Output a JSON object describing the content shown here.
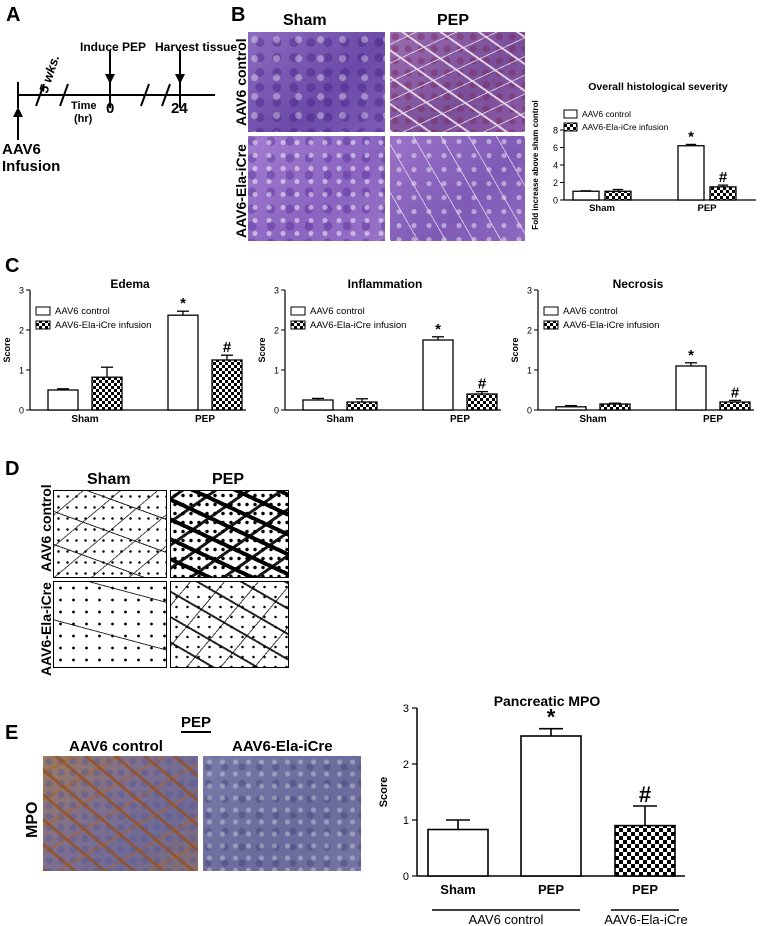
{
  "panels": {
    "A": "A",
    "B": "B",
    "C": "C",
    "D": "D",
    "E": "E"
  },
  "timeline": {
    "five_wks": "5 wks.",
    "induce_pep": "Induce PEP",
    "harvest": "Harvest tissue",
    "time_label_1": "Time",
    "time_label_2": "(hr)",
    "t0": "0",
    "t24": "24",
    "aav6_1": "AAV6",
    "aav6_2": "Infusion"
  },
  "panelB": {
    "col_sham": "Sham",
    "col_pep": "PEP",
    "row1": "AAV6 control",
    "row2": "AAV6-Ela-iCre"
  },
  "panelD": {
    "col_sham": "Sham",
    "col_pep": "PEP",
    "row1": "AAV6 control",
    "row2": "AAV6-Ela-iCre"
  },
  "panelE": {
    "pep_header": "PEP",
    "col1": "AAV6 control",
    "col2": "AAV6-Ela-iCre",
    "row": "MPO"
  },
  "legend": {
    "control": "AAV6 control",
    "icre": "AAV6-Ela-iCre infusion"
  },
  "chart_data": [
    {
      "id": "overall",
      "type": "bar",
      "title": "Overall histological severity",
      "ylabel": "Fold increase above sham control",
      "categories": [
        "Sham",
        "PEP"
      ],
      "ylim": [
        0,
        8
      ],
      "yticks": [
        "0",
        "2",
        "4",
        "6",
        "8"
      ],
      "series": [
        {
          "name": "AAV6 control",
          "values": [
            1.0,
            6.2
          ],
          "errors": [
            0.05,
            0.15
          ],
          "marks": [
            "",
            "*"
          ]
        },
        {
          "name": "AAV6-Ela-iCre infusion",
          "values": [
            1.0,
            1.5
          ],
          "errors": [
            0.2,
            0.2
          ],
          "marks": [
            "",
            "#"
          ]
        }
      ]
    },
    {
      "id": "edema",
      "type": "bar",
      "title": "Edema",
      "ylabel": "Score",
      "categories": [
        "Sham",
        "PEP"
      ],
      "ylim": [
        0,
        3
      ],
      "yticks": [
        "0",
        "1",
        "2",
        "3"
      ],
      "series": [
        {
          "name": "AAV6 control",
          "values": [
            0.5,
            2.37
          ],
          "errors": [
            0.03,
            0.1
          ],
          "marks": [
            "",
            "*"
          ]
        },
        {
          "name": "AAV6-Ela-iCre infusion",
          "values": [
            0.82,
            1.25
          ],
          "errors": [
            0.25,
            0.12
          ],
          "marks": [
            "",
            "#"
          ]
        }
      ]
    },
    {
      "id": "inflammation",
      "type": "bar",
      "title": "Inflammation",
      "ylabel": "Score",
      "categories": [
        "Sham",
        "PEP"
      ],
      "ylim": [
        0,
        3
      ],
      "yticks": [
        "0",
        "1",
        "2",
        "3"
      ],
      "series": [
        {
          "name": "AAV6 control",
          "values": [
            0.25,
            1.75
          ],
          "errors": [
            0.04,
            0.08
          ],
          "marks": [
            "",
            "*"
          ]
        },
        {
          "name": "AAV6-Ela-iCre infusion",
          "values": [
            0.2,
            0.4
          ],
          "errors": [
            0.08,
            0.06
          ],
          "marks": [
            "",
            "#"
          ]
        }
      ]
    },
    {
      "id": "necrosis",
      "type": "bar",
      "title": "Necrosis",
      "ylabel": "Score",
      "categories": [
        "Sham",
        "PEP"
      ],
      "ylim": [
        0,
        3
      ],
      "yticks": [
        "0",
        "1",
        "2",
        "3"
      ],
      "series": [
        {
          "name": "AAV6 control",
          "values": [
            0.08,
            1.1
          ],
          "errors": [
            0.03,
            0.08
          ],
          "marks": [
            "",
            "*"
          ]
        },
        {
          "name": "AAV6-Ela-iCre infusion",
          "values": [
            0.15,
            0.2
          ],
          "errors": [
            0.02,
            0.04
          ],
          "marks": [
            "",
            "#"
          ]
        }
      ]
    },
    {
      "id": "mpo",
      "type": "bar",
      "title": "Pancreatic MPO",
      "ylabel": "Score",
      "categories": [
        "Sham",
        "PEP",
        "PEP"
      ],
      "group_labels": [
        "AAV6 control",
        "AAV6-Ela-iCre"
      ],
      "ylim": [
        0,
        3
      ],
      "yticks": [
        "0",
        "1",
        "2",
        "3"
      ],
      "values": [
        0.83,
        2.5,
        0.9
      ],
      "errors": [
        0.17,
        0.13,
        0.35
      ],
      "marks": [
        "",
        "*",
        "#"
      ]
    }
  ]
}
